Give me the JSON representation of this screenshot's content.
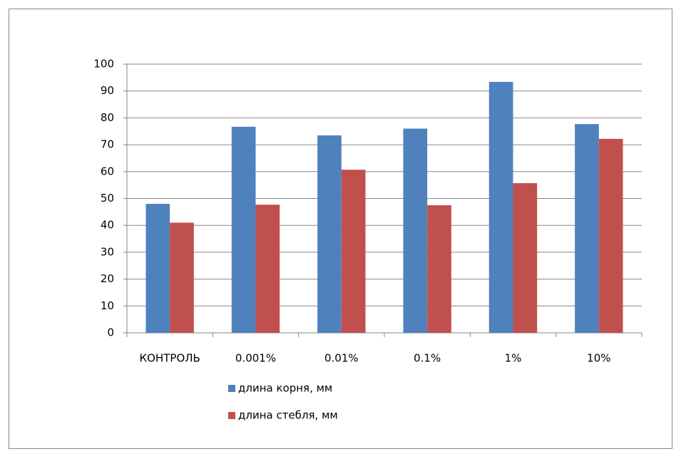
{
  "chart_data": {
    "type": "bar",
    "categories": [
      "КОНТРОЛЬ",
      "0.001%",
      "0.01%",
      "0.1%",
      "1%",
      "10%"
    ],
    "series": [
      {
        "name": "длина корня, мм",
        "color": "#4f81bd",
        "values": [
          48,
          76.7,
          73.5,
          76,
          93.4,
          77.7
        ]
      },
      {
        "name": "длина стебля, мм",
        "color": "#c0504d",
        "values": [
          41,
          47.7,
          60.7,
          47.5,
          55.7,
          72.2
        ]
      }
    ],
    "ylim": [
      0,
      100
    ],
    "yticks": [
      0,
      10,
      20,
      30,
      40,
      50,
      60,
      70,
      80,
      90,
      100
    ],
    "grid": true,
    "legend": "bottom"
  }
}
